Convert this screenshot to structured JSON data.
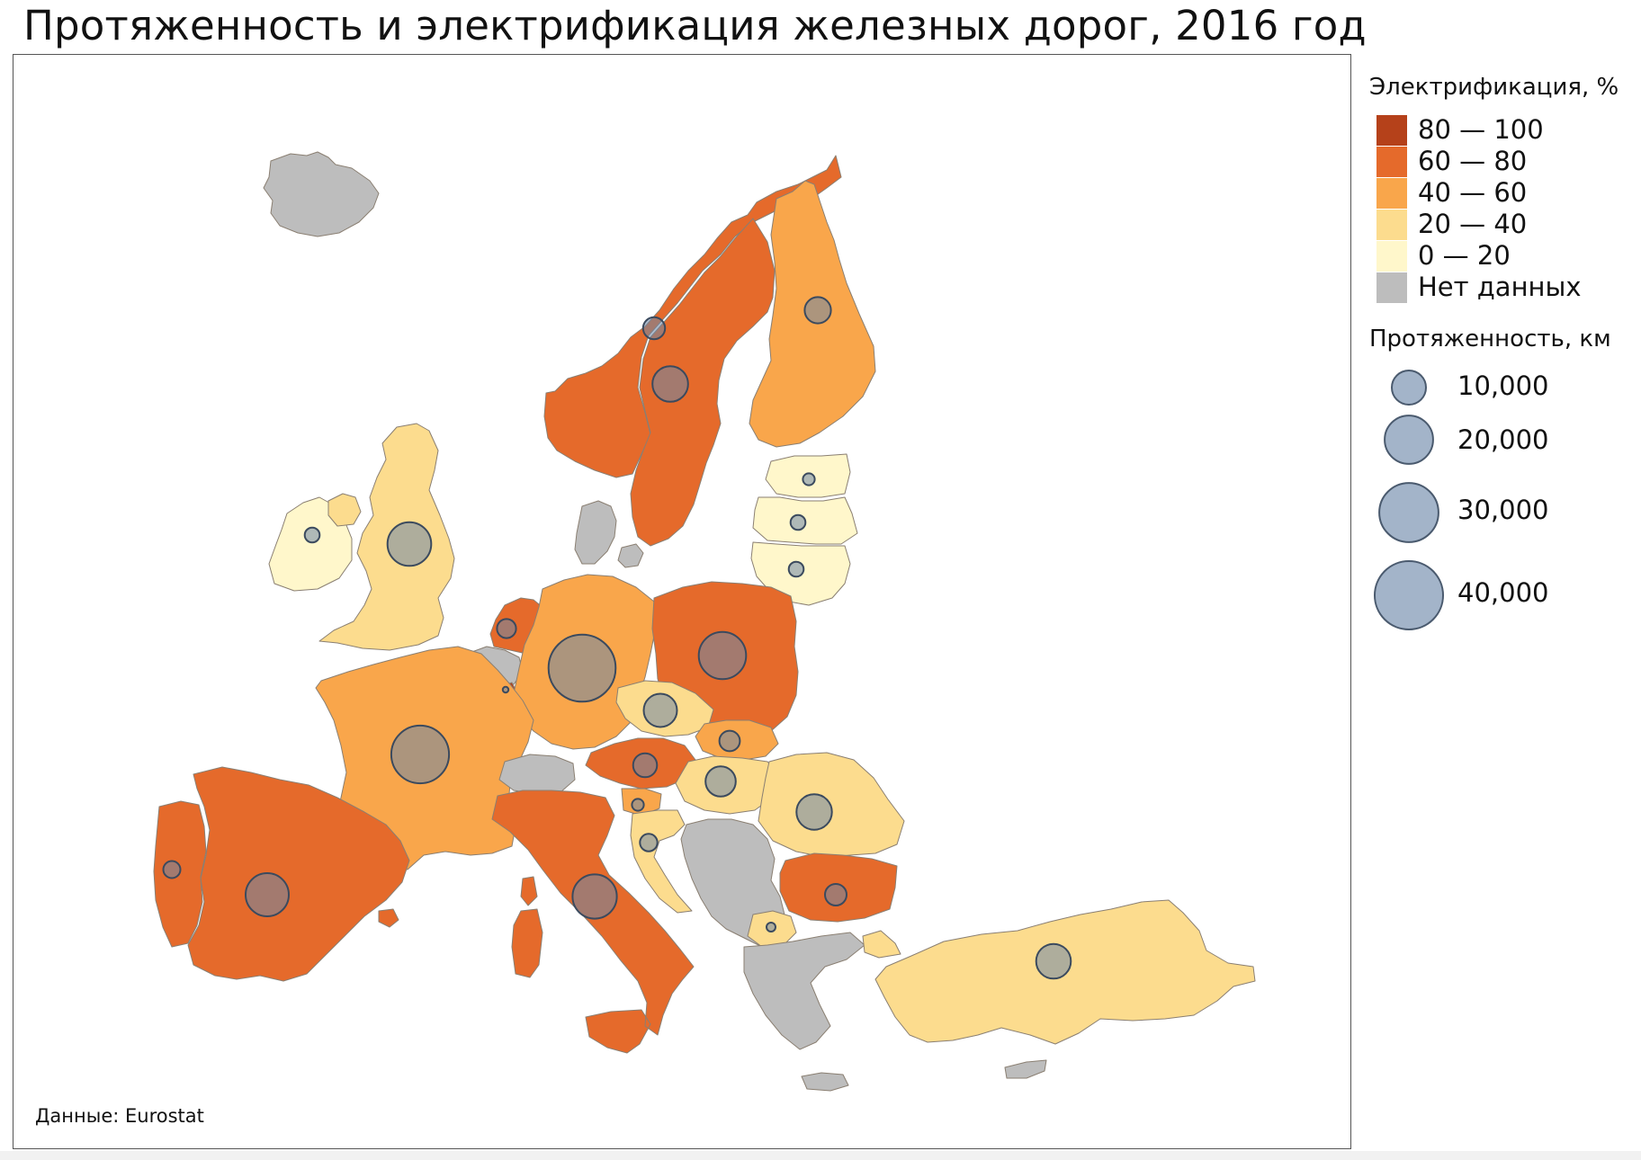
{
  "title": "Протяженность и электрификация железных дорог, 2016 год",
  "source": "Данные: Eurostat",
  "colors": {
    "class_80_100": "#b5411a",
    "class_60_80": "#e56a2b",
    "class_40_60": "#f9a64b",
    "class_20_40": "#fcdc8e",
    "class_0_20": "#fff7cb",
    "no_data": "#bdbdbd",
    "bubble_fill": "#6d86a8",
    "bubble_stroke": "#3b4a5e",
    "border": "#8a7f72"
  },
  "legend": {
    "electrification_title": "Электрификация, %",
    "classes": [
      {
        "label": "80 — 100",
        "color": "#b5411a"
      },
      {
        "label": "60 — 80",
        "color": "#e56a2b"
      },
      {
        "label": "40 — 60",
        "color": "#f9a64b"
      },
      {
        "label": "20 — 40",
        "color": "#fcdc8e"
      },
      {
        "label": "0 — 20",
        "color": "#fff7cb"
      },
      {
        "label": "Нет данных",
        "color": "#bdbdbd"
      }
    ],
    "length_title": "Протяженность, км",
    "sizes": [
      {
        "label": "10,000",
        "value": 10000
      },
      {
        "label": "20,000",
        "value": 20000
      },
      {
        "label": "30,000",
        "value": 30000
      },
      {
        "label": "40,000",
        "value": 40000
      }
    ]
  },
  "regions": [
    {
      "name": "iceland",
      "class": "no_data"
    },
    {
      "name": "norway",
      "class": "class_60_80"
    },
    {
      "name": "sweden",
      "class": "class_60_80"
    },
    {
      "name": "finland",
      "class": "class_40_60"
    },
    {
      "name": "estonia",
      "class": "class_0_20"
    },
    {
      "name": "latvia",
      "class": "class_0_20"
    },
    {
      "name": "lithuania",
      "class": "class_0_20"
    },
    {
      "name": "ireland",
      "class": "class_0_20"
    },
    {
      "name": "northern-ireland",
      "class": "class_20_40"
    },
    {
      "name": "united-kingdom",
      "class": "class_20_40"
    },
    {
      "name": "denmark",
      "class": "no_data"
    },
    {
      "name": "netherlands",
      "class": "class_60_80"
    },
    {
      "name": "belgium",
      "class": "no_data"
    },
    {
      "name": "luxembourg",
      "class": "class_80_100"
    },
    {
      "name": "germany",
      "class": "class_40_60"
    },
    {
      "name": "poland",
      "class": "class_60_80"
    },
    {
      "name": "france",
      "class": "class_40_60"
    },
    {
      "name": "czechia",
      "class": "class_20_40"
    },
    {
      "name": "slovakia",
      "class": "class_40_60"
    },
    {
      "name": "austria",
      "class": "class_60_80"
    },
    {
      "name": "hungary",
      "class": "class_20_40"
    },
    {
      "name": "switzerland",
      "class": "no_data"
    },
    {
      "name": "slovenia",
      "class": "class_40_60"
    },
    {
      "name": "croatia",
      "class": "class_20_40"
    },
    {
      "name": "romania",
      "class": "class_20_40"
    },
    {
      "name": "italy",
      "class": "class_60_80"
    },
    {
      "name": "spain",
      "class": "class_60_80"
    },
    {
      "name": "portugal",
      "class": "class_60_80"
    },
    {
      "name": "western-balkans",
      "class": "no_data"
    },
    {
      "name": "bulgaria",
      "class": "class_60_80"
    },
    {
      "name": "north-macedonia",
      "class": "class_20_40"
    },
    {
      "name": "greece",
      "class": "no_data"
    },
    {
      "name": "turkey",
      "class": "class_20_40"
    },
    {
      "name": "cyprus",
      "class": "no_data"
    }
  ],
  "bubbles": [
    {
      "name": "norway",
      "length_km": 4100
    },
    {
      "name": "sweden",
      "length_km": 10900
    },
    {
      "name": "finland",
      "length_km": 5900
    },
    {
      "name": "estonia",
      "length_km": 1200
    },
    {
      "name": "latvia",
      "length_km": 1900
    },
    {
      "name": "lithuania",
      "length_km": 1900
    },
    {
      "name": "ireland",
      "length_km": 1900
    },
    {
      "name": "united-kingdom",
      "length_km": 16300
    },
    {
      "name": "netherlands",
      "length_km": 3100
    },
    {
      "name": "luxembourg",
      "length_km": 280
    },
    {
      "name": "germany",
      "length_km": 38500
    },
    {
      "name": "poland",
      "length_km": 19100
    },
    {
      "name": "france",
      "length_km": 28500
    },
    {
      "name": "czechia",
      "length_km": 9500
    },
    {
      "name": "slovakia",
      "length_km": 3600
    },
    {
      "name": "austria",
      "length_km": 4900
    },
    {
      "name": "hungary",
      "length_km": 7800
    },
    {
      "name": "slovenia",
      "length_km": 1200
    },
    {
      "name": "croatia",
      "length_km": 2600
    },
    {
      "name": "romania",
      "length_km": 10800
    },
    {
      "name": "italy",
      "length_km": 16800
    },
    {
      "name": "spain",
      "length_km": 16000
    },
    {
      "name": "portugal",
      "length_km": 2500
    },
    {
      "name": "bulgaria",
      "length_km": 4000
    },
    {
      "name": "north-macedonia",
      "length_km": 700
    },
    {
      "name": "turkey",
      "length_km": 10300
    }
  ]
}
